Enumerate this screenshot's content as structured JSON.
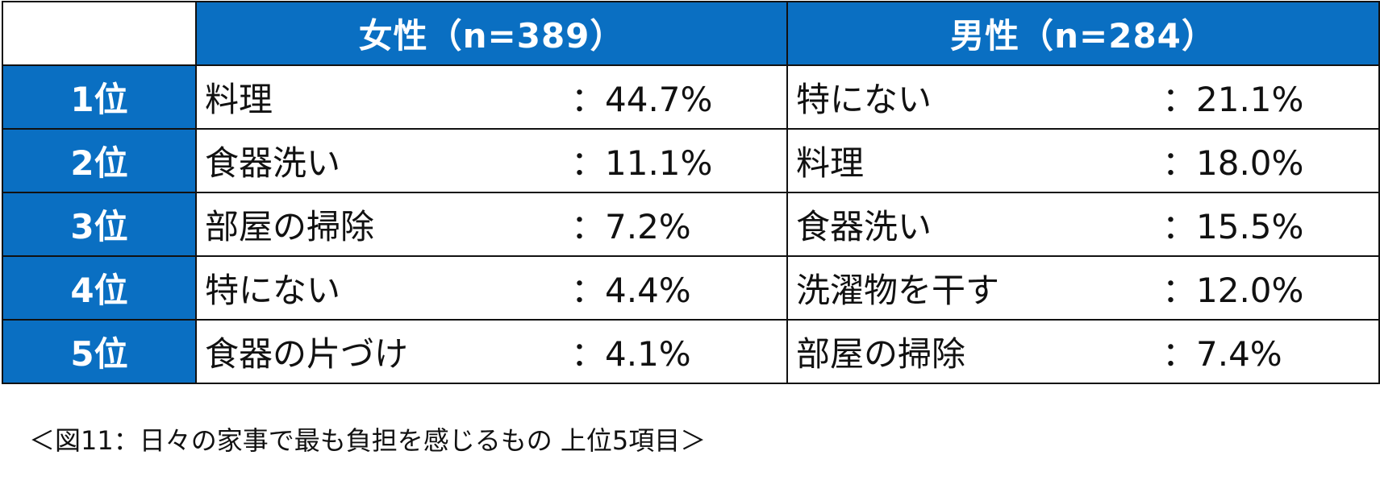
{
  "chart_data": {
    "type": "table",
    "header": {
      "corner": "",
      "groups": [
        "女性（n=389）",
        "男性（n=284）"
      ]
    },
    "rows": [
      {
        "rank": "1位",
        "female": {
          "item": "料理",
          "value": "：44.7%"
        },
        "male": {
          "item": "特にない",
          "value": "：21.1%"
        }
      },
      {
        "rank": "2位",
        "female": {
          "item": "食器洗い",
          "value": "：11.1%"
        },
        "male": {
          "item": "料理",
          "value": "：18.0%"
        }
      },
      {
        "rank": "3位",
        "female": {
          "item": "部屋の掃除",
          "value": "：7.2%"
        },
        "male": {
          "item": "食器洗い",
          "value": "：15.5%"
        }
      },
      {
        "rank": "4位",
        "female": {
          "item": "特にない",
          "value": "：4.4%"
        },
        "male": {
          "item": "洗濯物を干す",
          "value": "：12.0%"
        }
      },
      {
        "rank": "5位",
        "female": {
          "item": "食器の片づけ",
          "value": "：4.1%"
        },
        "male": {
          "item": "部屋の掃除",
          "value": "：7.4%"
        }
      }
    ],
    "caption": "＜図11：日々の家事で最も負担を感じるもの 上位5項目＞"
  },
  "colors": {
    "header_bg": "#0a6fc2",
    "header_text": "#ffffff",
    "border": "#111111"
  }
}
